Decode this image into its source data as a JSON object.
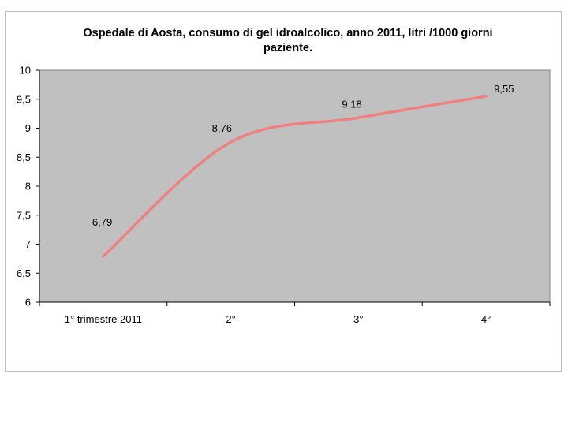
{
  "chart_data": {
    "type": "line",
    "title_lines": [
      "Ospedale di Aosta, consumo di gel idroalcolico, anno 2011, litri /1000 giorni",
      "paziente."
    ],
    "categories": [
      "1° trimestre 2011",
      "2°",
      "3°",
      "4°"
    ],
    "series": [
      {
        "values": [
          6.79,
          8.76,
          9.18,
          9.55
        ]
      }
    ],
    "data_labels": [
      "6,79",
      "8,76",
      "9,18",
      "9,55"
    ],
    "y_ticks": [
      "10",
      "9,5",
      "9",
      "8,5",
      "8",
      "7,5",
      "7",
      "6,5",
      "6"
    ],
    "y_tick_values": [
      10,
      9.5,
      9,
      8.5,
      8,
      7.5,
      7,
      6.5,
      6
    ],
    "ylim": [
      6,
      10
    ],
    "grid": false,
    "legend": "none",
    "colors": {
      "plot_area": "#c0c0c0",
      "line": "#f08080",
      "axis": "#000000",
      "frame": "#bdbdbd"
    }
  }
}
